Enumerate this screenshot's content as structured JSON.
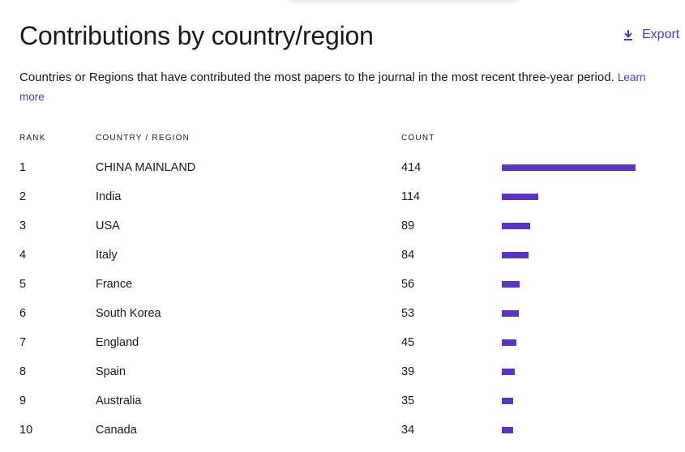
{
  "title": "Contributions by country/region",
  "export_label": "Export",
  "description": "Countries or Regions that have contributed the most papers to the journal in the most recent three-year period.",
  "learn_more": "Learn more",
  "headers": {
    "rank": "RANK",
    "country": "COUNTRY / REGION",
    "count": "COUNT"
  },
  "accent_color": "#5b35c2",
  "rows": [
    {
      "rank": "1",
      "country": "CHINA MAINLAND",
      "count": "414",
      "bar_fraction": 1.0
    },
    {
      "rank": "2",
      "country": "India",
      "count": "114",
      "bar_fraction": 0.2754
    },
    {
      "rank": "3",
      "country": "USA",
      "count": "89",
      "bar_fraction": 0.215
    },
    {
      "rank": "4",
      "country": "Italy",
      "count": "84",
      "bar_fraction": 0.2029
    },
    {
      "rank": "5",
      "country": "France",
      "count": "56",
      "bar_fraction": 0.1353
    },
    {
      "rank": "6",
      "country": "South Korea",
      "count": "53",
      "bar_fraction": 0.128
    },
    {
      "rank": "7",
      "country": "England",
      "count": "45",
      "bar_fraction": 0.1087
    },
    {
      "rank": "8",
      "country": "Spain",
      "count": "39",
      "bar_fraction": 0.0942
    },
    {
      "rank": "9",
      "country": "Australia",
      "count": "35",
      "bar_fraction": 0.0845
    },
    {
      "rank": "10",
      "country": "Canada",
      "count": "34",
      "bar_fraction": 0.0821
    }
  ]
}
